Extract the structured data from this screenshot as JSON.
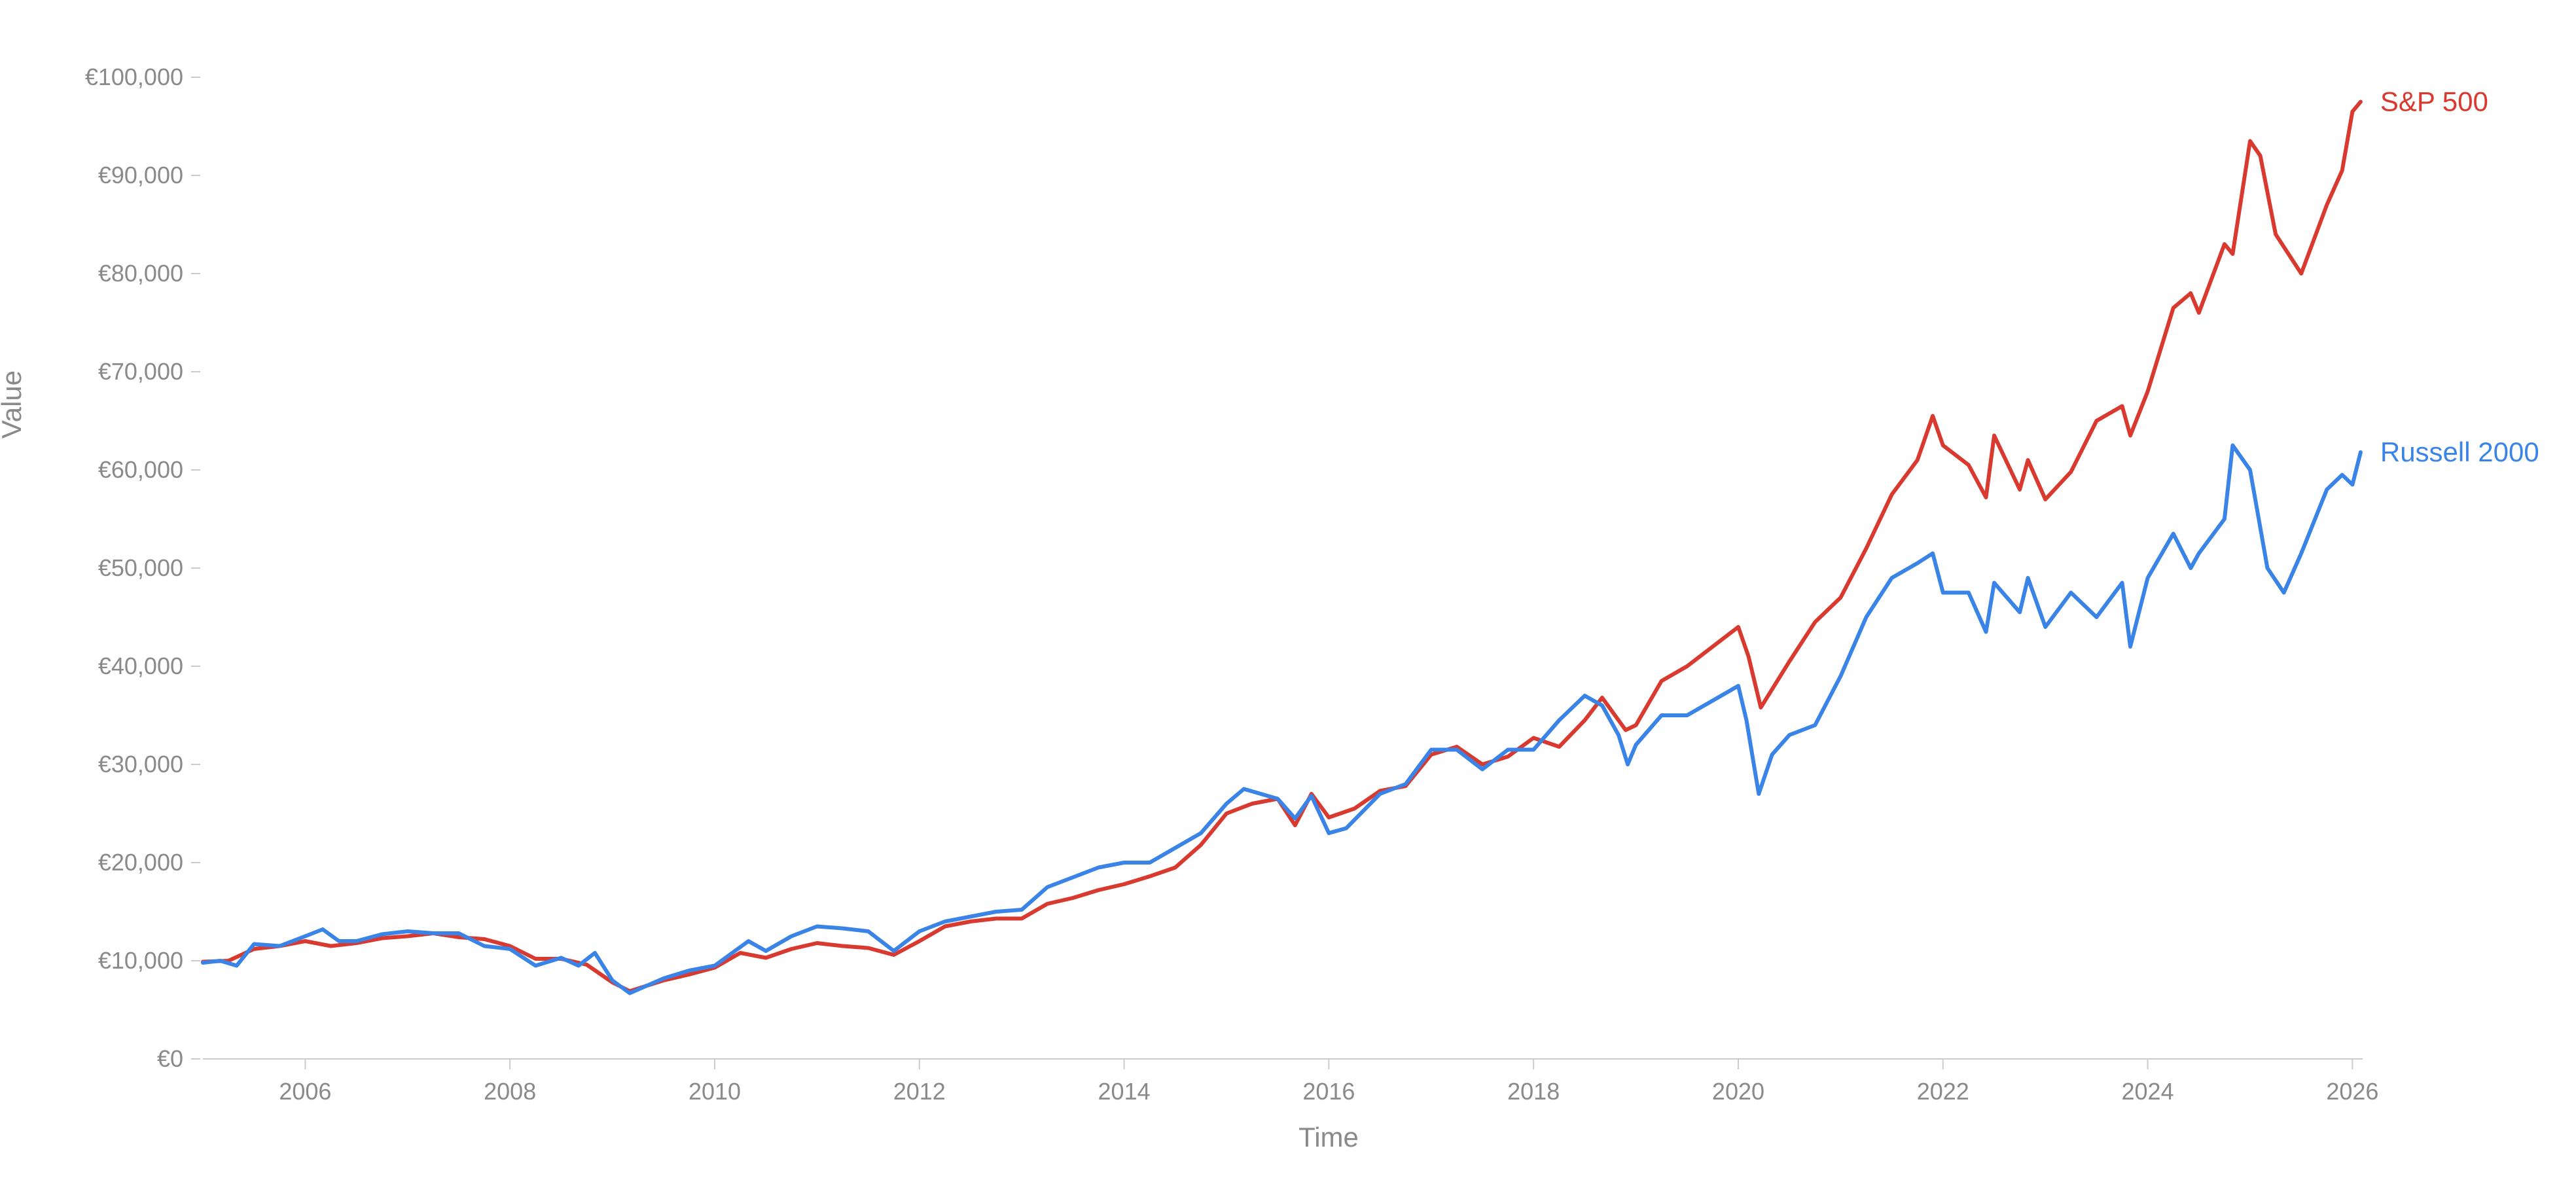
{
  "chart_data": {
    "type": "line",
    "xlabel": "Time",
    "ylabel": "Value",
    "ylim": [
      0,
      100000
    ],
    "xlim": [
      2005.0,
      2026.1
    ],
    "y_ticks": [
      {
        "value": 0,
        "label": "€0"
      },
      {
        "value": 10000,
        "label": "€10,000"
      },
      {
        "value": 20000,
        "label": "€20,000"
      },
      {
        "value": 30000,
        "label": "€30,000"
      },
      {
        "value": 40000,
        "label": "€40,000"
      },
      {
        "value": 50000,
        "label": "€50,000"
      },
      {
        "value": 60000,
        "label": "€60,000"
      },
      {
        "value": 70000,
        "label": "€70,000"
      },
      {
        "value": 80000,
        "label": "€80,000"
      },
      {
        "value": 90000,
        "label": "€90,000"
      },
      {
        "value": 100000,
        "label": "€100,000"
      }
    ],
    "x_ticks": [
      {
        "value": 2006,
        "label": "2006"
      },
      {
        "value": 2008,
        "label": "2008"
      },
      {
        "value": 2010,
        "label": "2010"
      },
      {
        "value": 2012,
        "label": "2012"
      },
      {
        "value": 2014,
        "label": "2014"
      },
      {
        "value": 2016,
        "label": "2016"
      },
      {
        "value": 2018,
        "label": "2018"
      },
      {
        "value": 2020,
        "label": "2020"
      },
      {
        "value": 2022,
        "label": "2022"
      },
      {
        "value": 2024,
        "label": "2024"
      },
      {
        "value": 2026,
        "label": "2026"
      }
    ],
    "grid": false,
    "legend": "inline-right",
    "series": [
      {
        "name": "S&P 500",
        "color": "#d93a30",
        "x": [
          2005.0,
          2005.25,
          2005.5,
          2005.75,
          2006.0,
          2006.25,
          2006.5,
          2006.75,
          2007.0,
          2007.25,
          2007.5,
          2007.75,
          2008.0,
          2008.25,
          2008.5,
          2008.75,
          2009.0,
          2009.17,
          2009.5,
          2009.75,
          2010.0,
          2010.25,
          2010.5,
          2010.75,
          2011.0,
          2011.25,
          2011.5,
          2011.75,
          2012.0,
          2012.25,
          2012.5,
          2012.75,
          2013.0,
          2013.25,
          2013.5,
          2013.75,
          2014.0,
          2014.25,
          2014.5,
          2014.75,
          2015.0,
          2015.25,
          2015.5,
          2015.67,
          2015.83,
          2016.0,
          2016.25,
          2016.5,
          2016.75,
          2017.0,
          2017.25,
          2017.5,
          2017.75,
          2018.0,
          2018.25,
          2018.5,
          2018.67,
          2018.9,
          2019.0,
          2019.25,
          2019.5,
          2019.75,
          2020.0,
          2020.1,
          2020.22,
          2020.5,
          2020.75,
          2021.0,
          2021.25,
          2021.5,
          2021.75,
          2021.9,
          2022.0,
          2022.25,
          2022.42,
          2022.5,
          2022.75,
          2022.83,
          2023.0,
          2023.25,
          2023.5,
          2023.75,
          2023.83,
          2024.0,
          2024.25,
          2024.42,
          2024.5,
          2024.75,
          2024.83,
          2025.0,
          2025.1,
          2025.25,
          2025.5,
          2025.75,
          2025.9,
          2026.0,
          2026.08
        ],
        "values": [
          9900,
          10000,
          11200,
          11500,
          12000,
          11500,
          11800,
          12300,
          12500,
          12800,
          12400,
          12200,
          11500,
          10200,
          10200,
          9600,
          7800,
          6900,
          8000,
          8600,
          9300,
          10800,
          10300,
          11200,
          11800,
          11500,
          11300,
          10600,
          12000,
          13500,
          14000,
          14300,
          14300,
          15800,
          16400,
          17200,
          17800,
          18600,
          19500,
          21800,
          25000,
          26000,
          26500,
          23800,
          27000,
          24600,
          25500,
          27300,
          27800,
          31000,
          31800,
          30000,
          30800,
          32700,
          31800,
          34500,
          36800,
          33500,
          34000,
          38500,
          40000,
          42000,
          44000,
          41000,
          35800,
          40500,
          44500,
          47000,
          52000,
          57500,
          61000,
          65500,
          62500,
          60500,
          57200,
          63500,
          58000,
          61000,
          57000,
          59800,
          65000,
          66500,
          63500,
          68000,
          76500,
          78000,
          76000,
          83000,
          82000,
          93500,
          92000,
          84000,
          80000,
          87000,
          90500,
          96500,
          97500
        ]
      },
      {
        "name": "Russell 2000",
        "color": "#3a84e8",
        "x": [
          2005.0,
          2005.17,
          2005.33,
          2005.5,
          2005.75,
          2006.0,
          2006.17,
          2006.33,
          2006.5,
          2006.75,
          2007.0,
          2007.25,
          2007.5,
          2007.75,
          2008.0,
          2008.25,
          2008.5,
          2008.67,
          2008.83,
          2009.0,
          2009.17,
          2009.5,
          2009.75,
          2010.0,
          2010.33,
          2010.5,
          2010.75,
          2011.0,
          2011.25,
          2011.5,
          2011.75,
          2012.0,
          2012.25,
          2012.5,
          2012.75,
          2013.0,
          2013.25,
          2013.5,
          2013.75,
          2014.0,
          2014.25,
          2014.5,
          2014.75,
          2015.0,
          2015.17,
          2015.5,
          2015.67,
          2015.83,
          2016.0,
          2016.17,
          2016.5,
          2016.75,
          2017.0,
          2017.25,
          2017.5,
          2017.75,
          2018.0,
          2018.25,
          2018.5,
          2018.67,
          2018.83,
          2018.92,
          2019.0,
          2019.25,
          2019.5,
          2019.75,
          2020.0,
          2020.08,
          2020.2,
          2020.33,
          2020.5,
          2020.75,
          2021.0,
          2021.25,
          2021.5,
          2021.75,
          2021.9,
          2022.0,
          2022.25,
          2022.42,
          2022.5,
          2022.75,
          2022.83,
          2023.0,
          2023.25,
          2023.5,
          2023.75,
          2023.83,
          2024.0,
          2024.25,
          2024.42,
          2024.5,
          2024.75,
          2024.83,
          2025.0,
          2025.17,
          2025.33,
          2025.5,
          2025.75,
          2025.9,
          2026.0,
          2026.08
        ],
        "values": [
          9800,
          10000,
          9500,
          11700,
          11500,
          12500,
          13200,
          12000,
          12000,
          12700,
          13000,
          12800,
          12800,
          11500,
          11200,
          9500,
          10300,
          9500,
          10800,
          8000,
          6700,
          8200,
          9000,
          9500,
          12000,
          11000,
          12500,
          13500,
          13300,
          13000,
          11000,
          13000,
          14000,
          14500,
          15000,
          15200,
          17500,
          18500,
          19500,
          20000,
          20000,
          21500,
          23000,
          26000,
          27500,
          26500,
          24500,
          26800,
          23000,
          23500,
          27000,
          28000,
          31500,
          31500,
          29500,
          31500,
          31500,
          34500,
          37000,
          36000,
          33000,
          30000,
          32000,
          35000,
          35000,
          36500,
          38000,
          34500,
          27000,
          31000,
          33000,
          34000,
          39000,
          45000,
          49000,
          50500,
          51500,
          47500,
          47500,
          43500,
          48500,
          45500,
          49000,
          44000,
          47500,
          45000,
          48500,
          42000,
          49000,
          53500,
          50000,
          51500,
          55000,
          62500,
          60000,
          50000,
          47500,
          51500,
          58000,
          59500,
          58500,
          61800
        ]
      }
    ]
  }
}
